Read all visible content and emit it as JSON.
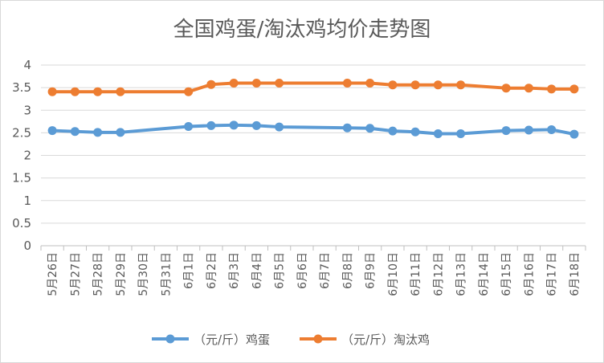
{
  "chart_data": {
    "type": "line",
    "title": "全国鸡蛋/淘汰鸡均价走势图",
    "xlabel": "",
    "ylabel": "",
    "ylim": [
      0,
      4
    ],
    "yticks": [
      "0",
      "0.5",
      "1",
      "1.5",
      "2",
      "2.5",
      "3",
      "3.5",
      "4"
    ],
    "grid": true,
    "legend_position": "bottom",
    "categories": [
      "5月26日",
      "5月27日",
      "5月28日",
      "5月29日",
      "5月30日",
      "5月31日",
      "6月1日",
      "6月2日",
      "6月3日",
      "6月4日",
      "6月5日",
      "6月6日",
      "6月7日",
      "6月8日",
      "6月9日",
      "6月10日",
      "6月11日",
      "6月12日",
      "6月13日",
      "6月14日",
      "6月15日",
      "6月16日",
      "6月17日",
      "6月18日"
    ],
    "series": [
      {
        "name": "（元/斤）鸡蛋",
        "color": "#5b9bd5",
        "values": [
          2.55,
          2.53,
          2.51,
          2.51,
          null,
          null,
          2.64,
          2.66,
          2.67,
          2.66,
          2.63,
          null,
          null,
          2.61,
          2.6,
          2.54,
          2.52,
          2.48,
          2.48,
          null,
          2.55,
          2.56,
          2.57,
          2.47
        ]
      },
      {
        "name": "（元/斤）淘汰鸡",
        "color": "#ed7d31",
        "values": [
          3.41,
          3.41,
          3.41,
          3.41,
          null,
          null,
          3.41,
          3.57,
          3.6,
          3.6,
          3.6,
          null,
          null,
          3.6,
          3.6,
          3.56,
          3.56,
          3.56,
          3.56,
          null,
          3.49,
          3.49,
          3.47,
          3.47
        ]
      }
    ]
  }
}
